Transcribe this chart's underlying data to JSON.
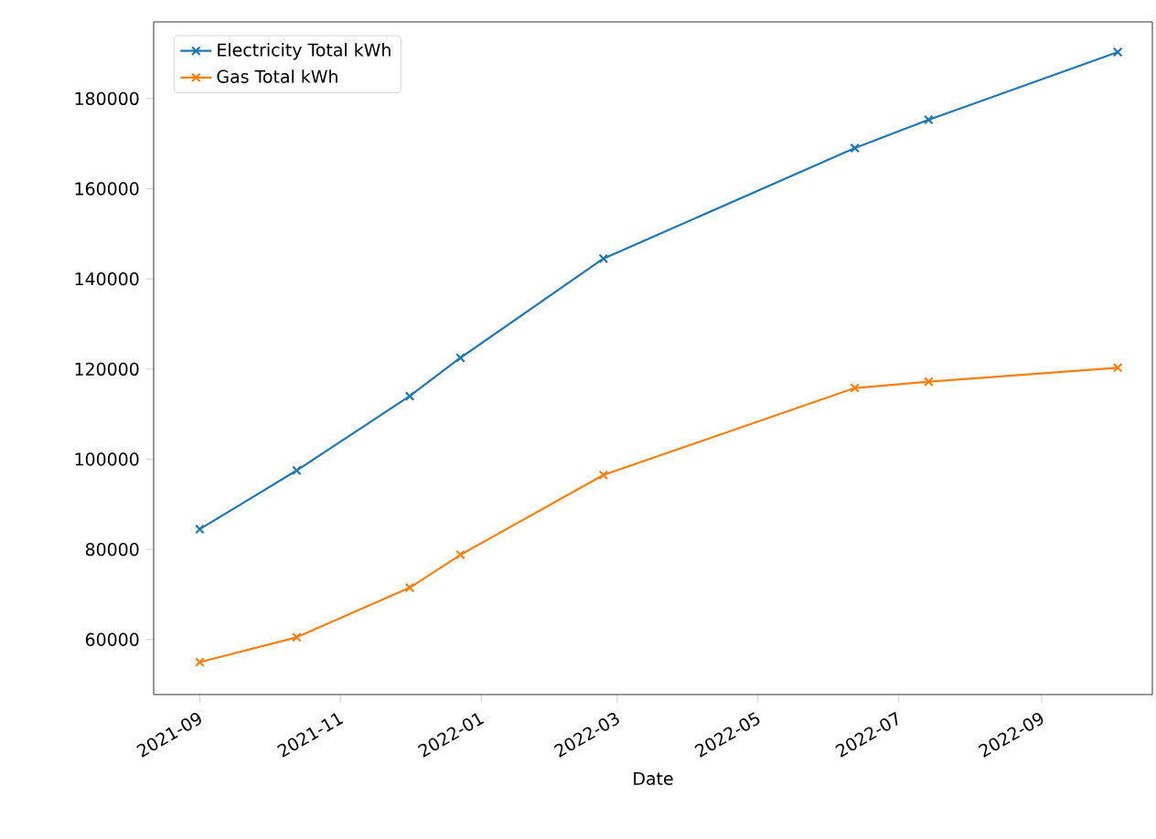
{
  "chart_data": {
    "type": "line",
    "xlabel": "Date",
    "x": [
      "2021-09-01",
      "2021-10-13",
      "2021-12-01",
      "2021-12-23",
      "2022-02-23",
      "2022-06-12",
      "2022-07-14",
      "2022-10-04"
    ],
    "series": [
      {
        "name": "Electricity Total kWh",
        "color": "#1f77b4",
        "values": [
          84500,
          97500,
          114000,
          122500,
          144500,
          169000,
          175300,
          190300
        ]
      },
      {
        "name": "Gas Total kWh",
        "color": "#ff7f0e",
        "values": [
          55000,
          60500,
          71500,
          78800,
          96500,
          115800,
          117200,
          120300
        ]
      }
    ],
    "xlim": [
      "2021-08-12",
      "2022-10-19"
    ],
    "ylim": [
      47800,
      197000
    ],
    "xticks": [
      "2021-09",
      "2021-11",
      "2022-01",
      "2022-03",
      "2022-05",
      "2022-07",
      "2022-09"
    ],
    "yticks": [
      60000,
      80000,
      100000,
      120000,
      140000,
      160000,
      180000
    ],
    "marker": "cross",
    "line_style": "solid",
    "legend": "top left",
    "grid": false
  }
}
